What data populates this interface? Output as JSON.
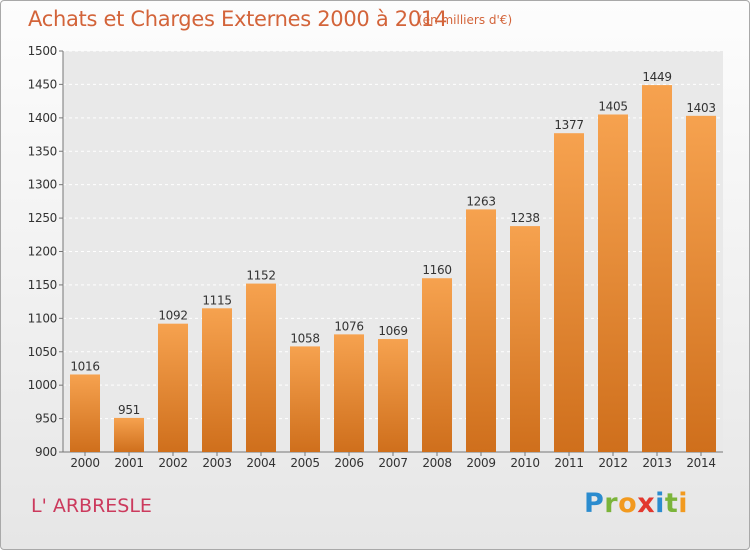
{
  "title": "Achats et Charges Externes 2000 à 2014",
  "subtitle": "(en milliers d'€)",
  "place": "L' ARBRESLE",
  "logo": {
    "letters": [
      "P",
      "r",
      "o",
      "x",
      "i",
      "t",
      "i"
    ],
    "colors": [
      "#2b8ccf",
      "#7bb43a",
      "#f29a1f",
      "#e2382f",
      "#2b8ccf",
      "#7bb43a",
      "#f29a1f"
    ]
  },
  "colors": {
    "bar_top": "#f6a24f",
    "bar_bottom": "#cf6f1c",
    "title": "#d3643a",
    "place": "#cc3a5d"
  },
  "chart_data": {
    "type": "bar",
    "title": "Achats et Charges Externes 2000 à 2014",
    "subtitle": "(en milliers d'€)",
    "categories": [
      "2000",
      "2001",
      "2002",
      "2003",
      "2004",
      "2005",
      "2006",
      "2007",
      "2008",
      "2009",
      "2010",
      "2011",
      "2012",
      "2013",
      "2014"
    ],
    "values": [
      1016,
      951,
      1092,
      1115,
      1152,
      1058,
      1076,
      1069,
      1160,
      1263,
      1238,
      1377,
      1405,
      1449,
      1403
    ],
    "ylim": [
      900,
      1500
    ],
    "yticks": [
      900,
      950,
      1000,
      1050,
      1100,
      1150,
      1200,
      1250,
      1300,
      1350,
      1400,
      1450,
      1500
    ],
    "grid": true,
    "xlabel": "",
    "ylabel": ""
  }
}
